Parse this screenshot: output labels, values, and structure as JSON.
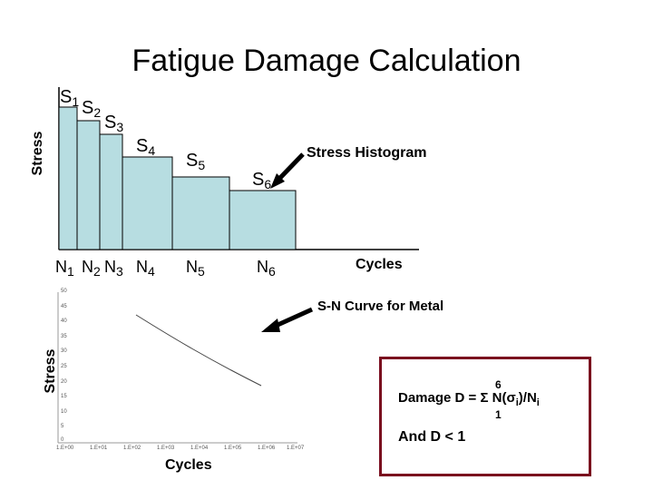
{
  "title": "Fatigue Damage Calculation",
  "histogram": {
    "ylabel": "Stress",
    "xlabel": "Cycles",
    "annotation": "Stress Histogram",
    "stress_labels": [
      {
        "base": "S",
        "sub": "1"
      },
      {
        "base": "S",
        "sub": "2"
      },
      {
        "base": "S",
        "sub": "3"
      },
      {
        "base": "S",
        "sub": "4"
      },
      {
        "base": "S",
        "sub": "5"
      },
      {
        "base": "S",
        "sub": "6"
      }
    ],
    "cycle_labels": [
      {
        "base": "N",
        "sub": "1"
      },
      {
        "base": "N",
        "sub": "2"
      },
      {
        "base": "N",
        "sub": "3"
      },
      {
        "base": "N",
        "sub": "4"
      },
      {
        "base": "N",
        "sub": "5"
      },
      {
        "base": "N",
        "sub": "6"
      }
    ],
    "bar_fill": "#b7dde1"
  },
  "sn_curve": {
    "annotation": "S-N Curve for Metal",
    "ylabel": "Stress",
    "xlabel": "Cycles",
    "y_ticks": [
      "50",
      "45",
      "40",
      "35",
      "30",
      "25",
      "20",
      "15",
      "10",
      "5",
      "0"
    ],
    "x_ticks": [
      "1.E+00",
      "1.E+01",
      "1.E+02",
      "1.E+03",
      "1.E+04",
      "1.E+05",
      "1.E+06",
      "1.E+07"
    ]
  },
  "formula": {
    "upper_limit": "6",
    "expression": "Damage D = Σ N(σ",
    "index_i": "i",
    "divider": ")/N",
    "index_i2": "i",
    "lower_limit": "1",
    "condition": "And D < 1",
    "border_color": "#7a0c1e"
  }
}
